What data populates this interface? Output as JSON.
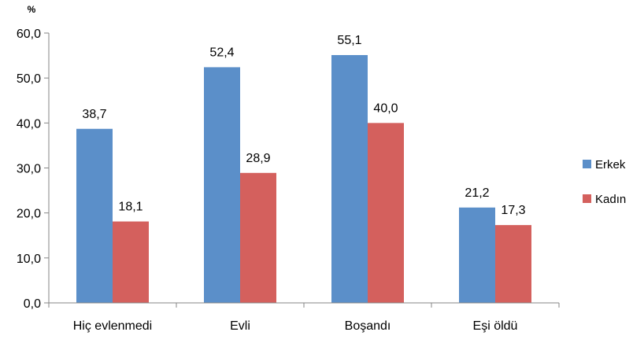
{
  "chart_data": {
    "type": "bar",
    "title": "",
    "ylabel": "%",
    "xlabel": "",
    "categories": [
      "Hiç evlenmedi",
      "Evli",
      "Boşandı",
      "Eşi öldü"
    ],
    "series": [
      {
        "name": "Erkek",
        "values": [
          38.7,
          52.4,
          55.1,
          21.2
        ],
        "color": "#5B8FC9"
      },
      {
        "name": "Kadın",
        "values": [
          18.1,
          28.9,
          40.0,
          17.3
        ],
        "color": "#D4605D"
      }
    ],
    "value_labels": [
      [
        "38,7",
        "52,4",
        "55,1",
        "21,2"
      ],
      [
        "18,1",
        "28,9",
        "40,0",
        "17,3"
      ]
    ],
    "yticks": [
      0,
      10,
      20,
      30,
      40,
      50,
      60
    ],
    "ytick_labels": [
      "0,0",
      "10,0",
      "20,0",
      "30,0",
      "40,0",
      "50,0",
      "60,0"
    ],
    "ylim": [
      0,
      60
    ],
    "grid": false,
    "legend_position": "right"
  }
}
